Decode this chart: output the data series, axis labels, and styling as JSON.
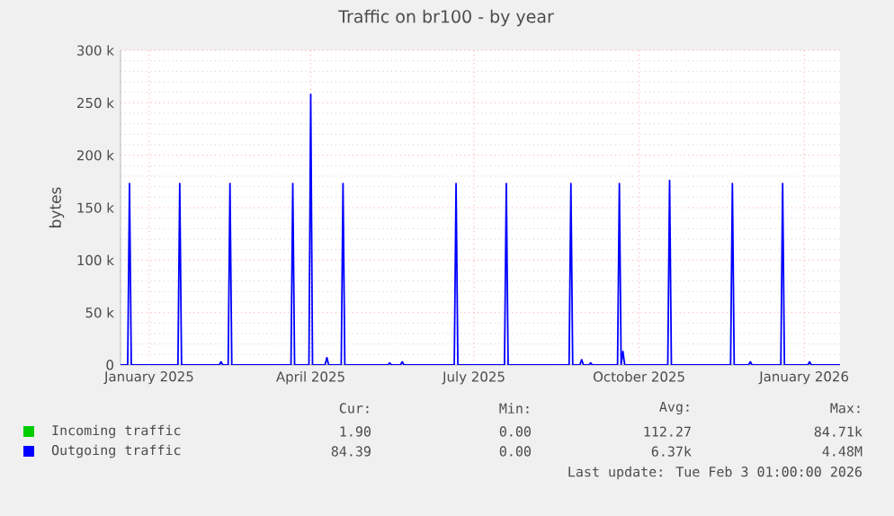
{
  "chart_data": {
    "type": "line",
    "title": "Traffic on br100 - by year",
    "ylabel": "bytes",
    "xlim": [
      "2024-12-16",
      "2026-01-21"
    ],
    "ylim": [
      0,
      300000
    ],
    "xticks": [
      {
        "value": "2025-01-01",
        "label": "January 2025"
      },
      {
        "value": "2025-04-01",
        "label": "April 2025"
      },
      {
        "value": "2025-07-01",
        "label": "July 2025"
      },
      {
        "value": "2025-10-01",
        "label": "October 2025"
      },
      {
        "value": "2026-01-01",
        "label": "January 2026"
      }
    ],
    "yticks": [
      0,
      {
        "value": 50000,
        "label": "50 k"
      },
      {
        "value": 100000,
        "label": "100 k"
      },
      {
        "value": 150000,
        "label": "150 k"
      },
      {
        "value": 200000,
        "label": "200 k"
      },
      {
        "value": 250000,
        "label": "250 k"
      },
      {
        "value": 300000,
        "label": "300 k"
      }
    ],
    "grid": true,
    "legend": "bottom",
    "series": [
      {
        "name": "Incoming traffic",
        "color": "#00cc00"
      },
      {
        "name": "Outgoing traffic",
        "color": "#0000ff",
        "x": [
          "2024-12-16",
          "2024-12-20",
          "2024-12-21",
          "2024-12-22",
          "2025-01-17",
          "2025-01-18",
          "2025-01-19",
          "2025-02-09",
          "2025-02-10",
          "2025-02-11",
          "2025-02-14",
          "2025-02-15",
          "2025-02-16",
          "2025-03-21",
          "2025-03-22",
          "2025-03-23",
          "2025-03-31",
          "2025-04-01",
          "2025-04-02",
          "2025-04-09",
          "2025-04-10",
          "2025-04-11",
          "2025-04-18",
          "2025-04-19",
          "2025-04-20",
          "2025-05-14",
          "2025-05-15",
          "2025-05-16",
          "2025-05-21",
          "2025-05-22",
          "2025-05-23",
          "2025-06-20",
          "2025-06-21",
          "2025-06-22",
          "2025-07-18",
          "2025-07-19",
          "2025-07-20",
          "2025-08-23",
          "2025-08-24",
          "2025-08-25",
          "2025-08-29",
          "2025-08-30",
          "2025-08-31",
          "2025-09-03",
          "2025-09-04",
          "2025-09-05",
          "2025-09-19",
          "2025-09-20",
          "2025-09-21",
          "2025-09-22",
          "2025-09-23",
          "2025-10-17",
          "2025-10-18",
          "2025-10-19",
          "2025-11-21",
          "2025-11-22",
          "2025-11-23",
          "2025-12-01",
          "2025-12-02",
          "2025-12-03",
          "2025-12-19",
          "2025-12-20",
          "2025-12-21",
          "2026-01-03",
          "2026-01-04",
          "2026-01-05",
          "2026-01-21"
        ],
        "values": [
          0,
          0,
          173000,
          0,
          0,
          173000,
          0,
          0,
          3000,
          0,
          0,
          173000,
          0,
          0,
          173000,
          0,
          0,
          258000,
          0,
          0,
          7000,
          0,
          0,
          173000,
          0,
          0,
          2000,
          0,
          0,
          3000,
          0,
          0,
          173000,
          0,
          0,
          173000,
          0,
          0,
          173000,
          0,
          0,
          5000,
          0,
          0,
          2000,
          0,
          0,
          173000,
          0,
          13000,
          0,
          0,
          176000,
          0,
          0,
          173000,
          0,
          0,
          3000,
          0,
          0,
          173000,
          0,
          0,
          3000,
          0,
          0
        ]
      }
    ],
    "annotations": [
      "Cur:",
      "Min:",
      "Avg:",
      "Max:",
      "1.90",
      "0.00",
      "112.27",
      "84.71k",
      "84.39",
      "0.00",
      "6.37k",
      "4.48M",
      "Last update: Tue Feb  3 01:00:00 2026"
    ]
  }
}
